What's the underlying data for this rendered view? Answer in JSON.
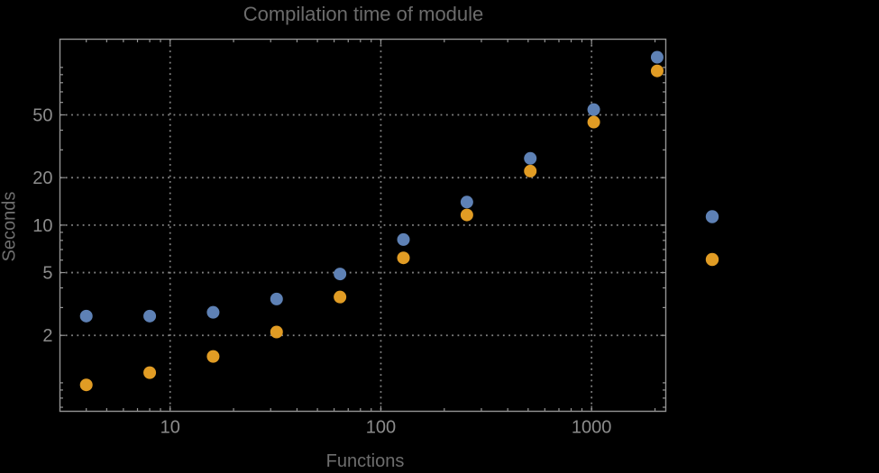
{
  "title": "Compilation time of module",
  "colors": {
    "background": "#000000",
    "frame": "#949494",
    "grid": "#848484",
    "tick": "#949494",
    "tick_label": "#8c8c8c",
    "title_text": "#6c6c6c",
    "axis_label_text": "#6e6e6e",
    "series_blue": "#5e81b5",
    "series_orange": "#e19c24"
  },
  "chart_data": {
    "type": "scatter",
    "title": "Compilation time of module",
    "xlabel": "Functions",
    "ylabel": "Seconds",
    "xscale": "log",
    "yscale": "log",
    "xlim": [
      3.0,
      2250
    ],
    "ylim": [
      0.66,
      151
    ],
    "grid": "dotted gridlines at labeled major ticks only",
    "legend_position": "right of frame, markers only (no visible label text)",
    "x": [
      4,
      8,
      16,
      32,
      64,
      128,
      256,
      512,
      1024,
      2048
    ],
    "series": [
      {
        "name": "blue",
        "color": "#5e81b5",
        "values": [
          2.65,
          2.65,
          2.8,
          3.4,
          4.9,
          8.1,
          14,
          26.5,
          54,
          116
        ]
      },
      {
        "name": "orange",
        "color": "#e19c24",
        "values": [
          0.97,
          1.16,
          1.47,
          2.1,
          3.5,
          6.2,
          11.6,
          22,
          45,
          95
        ]
      }
    ],
    "x_major_ticks": [
      10,
      100,
      1000
    ],
    "x_major_tick_labels": [
      "10",
      "100",
      "1000"
    ],
    "y_major_ticks": [
      2,
      5,
      10,
      20,
      50
    ],
    "y_major_tick_labels": [
      "2",
      "5",
      "10",
      "20",
      "50"
    ]
  },
  "legend": {
    "items": [
      {
        "label": "",
        "color": "#5e81b5"
      },
      {
        "label": "",
        "color": "#e19c24"
      }
    ]
  }
}
